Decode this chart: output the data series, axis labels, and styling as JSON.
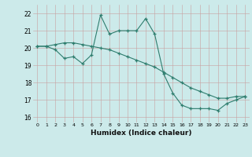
{
  "series1_x": [
    0,
    1,
    2,
    3,
    4,
    5,
    6,
    7,
    8,
    9,
    10,
    11,
    12,
    13,
    14,
    15,
    16,
    17,
    18,
    19,
    20,
    21,
    22,
    23
  ],
  "series1_y": [
    20.1,
    20.1,
    19.9,
    19.4,
    19.5,
    19.1,
    19.6,
    21.9,
    20.8,
    21.0,
    21.0,
    21.0,
    21.7,
    20.8,
    18.5,
    17.4,
    16.7,
    16.5,
    16.5,
    16.5,
    16.4,
    16.8,
    17.0,
    17.2
  ],
  "series2_x": [
    0,
    1,
    2,
    3,
    4,
    5,
    6,
    7,
    8,
    9,
    10,
    11,
    12,
    13,
    14,
    15,
    16,
    17,
    18,
    19,
    20,
    21,
    22,
    23
  ],
  "series2_y": [
    20.1,
    20.1,
    20.2,
    20.3,
    20.3,
    20.2,
    20.1,
    20.0,
    19.9,
    19.7,
    19.5,
    19.3,
    19.1,
    18.9,
    18.6,
    18.3,
    18.0,
    17.7,
    17.5,
    17.3,
    17.1,
    17.1,
    17.2,
    17.2
  ],
  "color": "#2e7d6e",
  "bg_color": "#cceaea",
  "xlabel": "Humidex (Indice chaleur)",
  "ylim": [
    15.7,
    22.5
  ],
  "yticks": [
    16,
    17,
    18,
    19,
    20,
    21,
    22
  ],
  "xticks": [
    0,
    1,
    2,
    3,
    4,
    5,
    6,
    7,
    8,
    9,
    10,
    11,
    12,
    13,
    14,
    15,
    16,
    17,
    18,
    19,
    20,
    21,
    22,
    23
  ]
}
